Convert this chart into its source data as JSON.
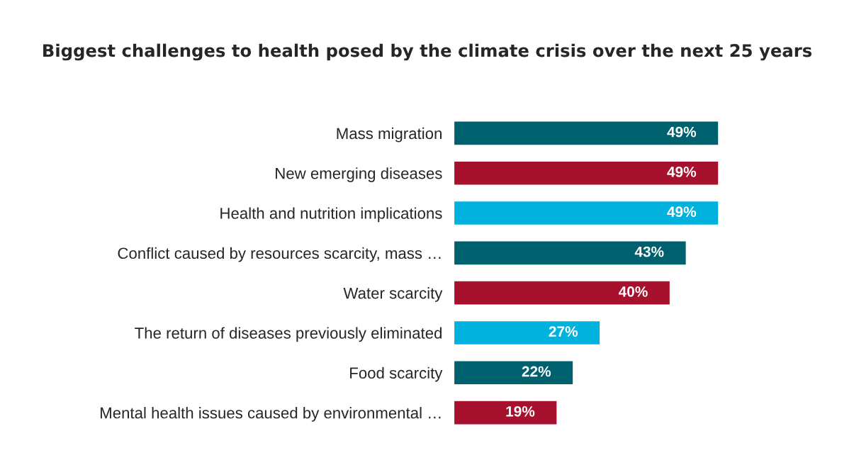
{
  "chart_data": {
    "type": "bar",
    "orientation": "horizontal",
    "title": "Biggest challenges to health posed by the climate crisis over the next 25 years",
    "categories": [
      "Mass migration",
      "New emerging diseases",
      "Health and nutrition implications",
      "Conflict caused by resources scarcity, mass …",
      "Water scarcity",
      "The return of diseases previously eliminated",
      "Food scarcity",
      "Mental health issues caused by environmental …"
    ],
    "values": [
      49,
      49,
      49,
      43,
      40,
      27,
      22,
      19
    ],
    "value_labels": [
      "49%",
      "49%",
      "49%",
      "43%",
      "40%",
      "27%",
      "22%",
      "19%"
    ],
    "colors": [
      "#00616e",
      "#a6122d",
      "#00b2dd",
      "#00616e",
      "#a6122d",
      "#00b2dd",
      "#00616e",
      "#a6122d"
    ],
    "tick_labels": "y",
    "grid": false,
    "legend": false
  }
}
